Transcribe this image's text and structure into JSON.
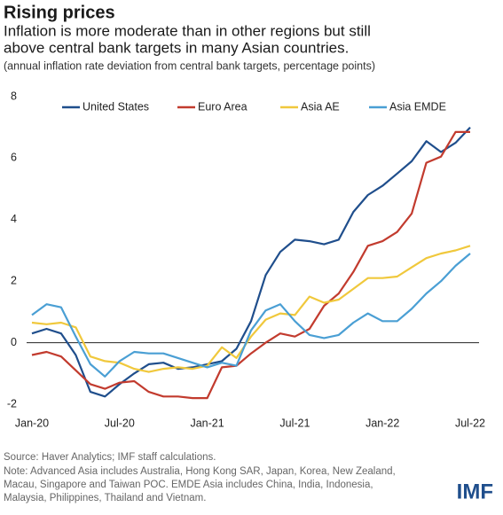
{
  "chart_data": {
    "type": "line",
    "title": "Rising prices",
    "subtitle": [
      "Inflation is more moderate than in other regions but still",
      "above central bank targets in many Asian countries."
    ],
    "y_axis_label": "(annual inflation rate deviation from central bank targets, percentage points)",
    "source": "Source: Haver Analytics; IMF staff calculations.",
    "note": [
      "Note: Advanced Asia includes Australia, Hong Kong SAR, Japan, Korea, New Zealand,",
      "Macau, Singapore and Taiwan POC. EMDE Asia includes China, India, Indonesia,",
      "Malaysia, Philippines, Thailand and Vietnam."
    ],
    "logo": "IMF",
    "categories": [
      "Jan-20",
      null,
      null,
      null,
      null,
      null,
      "Jul-20",
      null,
      null,
      null,
      null,
      null,
      "Jan-21",
      null,
      null,
      null,
      null,
      null,
      "Jul-21",
      null,
      null,
      null,
      null,
      null,
      "Jan-22",
      null,
      null,
      null,
      null,
      null,
      "Jul-22"
    ],
    "ylim": [
      -2,
      8
    ],
    "yticks": [
      -2,
      0,
      2,
      4,
      6,
      8
    ],
    "grid": false,
    "legend": "top",
    "series": [
      {
        "name": "United States",
        "color": "#1f4e8c",
        "values": [
          0.3,
          0.45,
          0.3,
          -0.4,
          -1.6,
          -1.75,
          -1.35,
          -1.0,
          -0.7,
          -0.65,
          -0.85,
          -0.8,
          -0.7,
          -0.6,
          -0.2,
          0.7,
          2.2,
          2.95,
          3.35,
          3.3,
          3.2,
          3.35,
          4.25,
          4.8,
          5.1,
          5.5,
          5.9,
          6.55,
          6.2,
          6.5,
          7.0
        ]
      },
      {
        "name": "Euro Area",
        "color": "#c23b2e",
        "values": [
          -0.4,
          -0.3,
          -0.45,
          -0.9,
          -1.35,
          -1.5,
          -1.3,
          -1.25,
          -1.6,
          -1.75,
          -1.75,
          -1.8,
          -1.8,
          -0.8,
          -0.75,
          -0.35,
          0.0,
          0.3,
          0.2,
          0.45,
          1.2,
          1.6,
          2.3,
          3.15,
          3.3,
          3.6,
          4.2,
          5.85,
          6.05,
          6.85,
          6.85
        ]
      },
      {
        "name": "Asia AE",
        "color": "#f0c83c",
        "values": [
          0.65,
          0.6,
          0.65,
          0.5,
          -0.45,
          -0.6,
          -0.65,
          -0.85,
          -0.95,
          -0.85,
          -0.8,
          -0.85,
          -0.75,
          -0.15,
          -0.5,
          0.2,
          0.75,
          0.95,
          0.9,
          1.5,
          1.3,
          1.4,
          1.75,
          2.1,
          2.1,
          2.15,
          2.45,
          2.75,
          2.9,
          3.0,
          3.15
        ]
      },
      {
        "name": "Asia EMDE",
        "color": "#4a9fd4",
        "values": [
          0.9,
          1.25,
          1.15,
          0.2,
          -0.7,
          -1.1,
          -0.6,
          -0.3,
          -0.35,
          -0.35,
          -0.5,
          -0.65,
          -0.8,
          -0.65,
          -0.75,
          0.4,
          1.05,
          1.25,
          0.7,
          0.25,
          0.15,
          0.25,
          0.65,
          0.95,
          0.7,
          0.7,
          1.1,
          1.6,
          2.0,
          2.5,
          2.9
        ]
      }
    ]
  }
}
